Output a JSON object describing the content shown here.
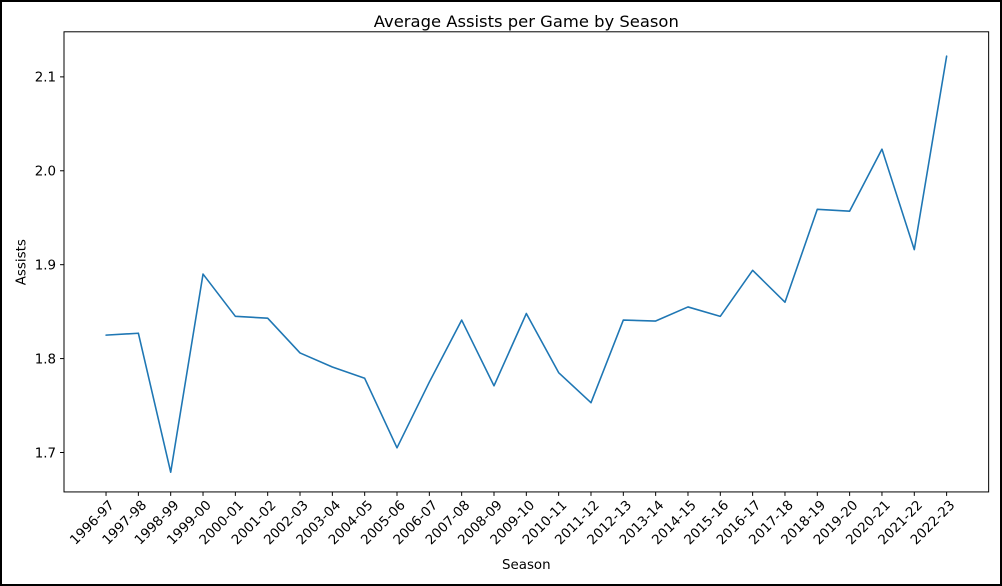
{
  "colors": {
    "line": "#1f77b4",
    "background": "#ffffff",
    "text": "#000000",
    "axis": "#000000"
  },
  "chart_data": {
    "type": "line",
    "title": "Average Assists per Game by Season",
    "xlabel": "Season",
    "ylabel": "Assists",
    "categories": [
      "1996-97",
      "1997-98",
      "1998-99",
      "1999-00",
      "2000-01",
      "2001-02",
      "2002-03",
      "2003-04",
      "2004-05",
      "2005-06",
      "2006-07",
      "2007-08",
      "2008-09",
      "2009-10",
      "2010-11",
      "2011-12",
      "2012-13",
      "2013-14",
      "2014-15",
      "2015-16",
      "2016-17",
      "2017-18",
      "2018-19",
      "2019-20",
      "2020-21",
      "2021-22",
      "2022-23"
    ],
    "values": [
      1.825,
      1.827,
      1.679,
      1.89,
      1.845,
      1.843,
      1.806,
      1.791,
      1.779,
      1.705,
      1.775,
      1.841,
      1.771,
      1.848,
      1.785,
      1.753,
      1.841,
      1.84,
      1.855,
      1.845,
      1.894,
      1.86,
      1.959,
      1.957,
      2.023,
      1.916,
      2.122
    ],
    "yticks": [
      1.7,
      1.8,
      1.9,
      2.0,
      2.1
    ],
    "ytick_labels": [
      "1.7",
      "1.8",
      "1.9",
      "2.0",
      "2.1"
    ],
    "ylim": [
      1.658,
      2.148
    ],
    "xlim": [
      -1.3,
      27.3
    ],
    "grid": false,
    "legend": "none",
    "line_color": "#1f77b4",
    "x_tick_label_rotation_deg": 45
  }
}
